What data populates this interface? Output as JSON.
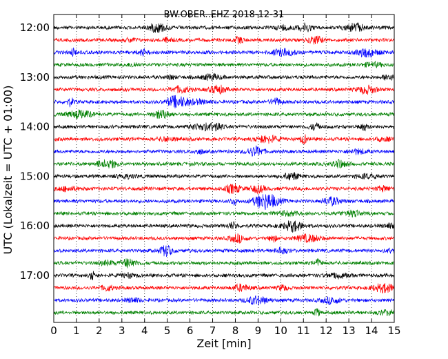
{
  "chart_data": {
    "type": "line",
    "title": "BW.OBER..EHZ 2018-12-31",
    "xlabel": "Zeit  [min]",
    "ylabel": "UTC (Lokalzeit = UTC + 01:00)",
    "xlim": [
      0,
      15
    ],
    "x_ticks": [
      0,
      1,
      2,
      3,
      4,
      5,
      6,
      7,
      8,
      9,
      10,
      11,
      12,
      13,
      14,
      15
    ],
    "y_ticks": [
      "12:00",
      "13:00",
      "14:00",
      "15:00",
      "16:00",
      "17:00"
    ],
    "trace_interval_minutes": 15,
    "grid": "vertical dotted lines at each minute",
    "colors": [
      "#000000",
      "#ff0000",
      "#0000ff",
      "#008000"
    ],
    "traces": [
      {
        "start": "12:00",
        "color": "#000000"
      },
      {
        "start": "12:15",
        "color": "#ff0000"
      },
      {
        "start": "12:30",
        "color": "#0000ff"
      },
      {
        "start": "12:45",
        "color": "#008000"
      },
      {
        "start": "13:00",
        "color": "#000000"
      },
      {
        "start": "13:15",
        "color": "#ff0000"
      },
      {
        "start": "13:30",
        "color": "#0000ff"
      },
      {
        "start": "13:45",
        "color": "#008000"
      },
      {
        "start": "14:00",
        "color": "#000000"
      },
      {
        "start": "14:15",
        "color": "#ff0000"
      },
      {
        "start": "14:30",
        "color": "#0000ff"
      },
      {
        "start": "14:45",
        "color": "#008000"
      },
      {
        "start": "15:00",
        "color": "#000000"
      },
      {
        "start": "15:15",
        "color": "#ff0000"
      },
      {
        "start": "15:30",
        "color": "#0000ff"
      },
      {
        "start": "15:45",
        "color": "#008000"
      },
      {
        "start": "16:00",
        "color": "#000000"
      },
      {
        "start": "16:15",
        "color": "#ff0000"
      },
      {
        "start": "16:30",
        "color": "#0000ff"
      },
      {
        "start": "16:45",
        "color": "#008000"
      },
      {
        "start": "17:00",
        "color": "#000000"
      },
      {
        "start": "17:15",
        "color": "#ff0000"
      },
      {
        "start": "17:30",
        "color": "#0000ff"
      },
      {
        "start": "17:45",
        "color": "#008000"
      }
    ]
  }
}
